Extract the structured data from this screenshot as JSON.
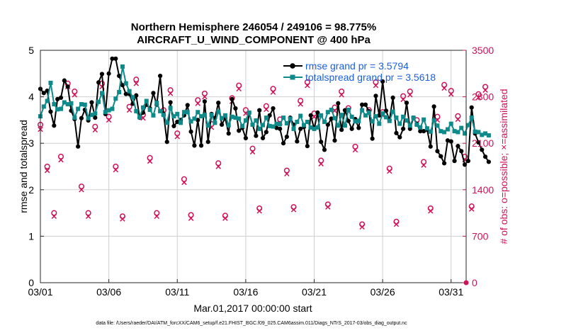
{
  "colors": {
    "rmse": "#000000",
    "spread": "#0f8a8a",
    "obs": "#d01259",
    "legend_text": "#1b5fe0"
  },
  "chart_data": {
    "type": "line",
    "title": "Northern Hemisphere 246054 / 249106 = 98.775%",
    "subtitle": "AIRCRAFT_U_WIND_COMPONENT @ 400 hPa",
    "xlabel": "Mar.01,2017 00:00:00 start",
    "ylabel_left": "rmse and totalspread",
    "ylabel_right": "# of obs: o=possible; ×=assimilated",
    "footer": "data file: /Users/raeder/DAI/ATM_forcXX/CAM6_setup/f.e21.FHIST_BGC.f09_025.CAM6assim.011/Diags_NTrS_2017-03/obs_diag_output.nc",
    "xlim": [
      0,
      31.1
    ],
    "ylim_left": [
      0,
      5
    ],
    "ylim_right": [
      0,
      3500
    ],
    "xticks": [
      0,
      5,
      10,
      15,
      20,
      25,
      30
    ],
    "xtick_labels": [
      "03/01",
      "03/06",
      "03/11",
      "03/16",
      "03/21",
      "03/26",
      "03/31"
    ],
    "yticks_left": [
      "0",
      "1",
      "2",
      "3",
      "4",
      "5"
    ],
    "yticks_right": [
      "0",
      "700",
      "1400",
      "2100",
      "2800",
      "3500"
    ],
    "series": [
      {
        "name": "rmse grand pr = 3.5794",
        "axis": "left",
        "x_start": 0,
        "x_step": 0.25,
        "values": [
          4.17,
          4.08,
          4.13,
          3.68,
          3.38,
          3.95,
          3.98,
          4.35,
          4.22,
          3.7,
          3.52,
          2.93,
          3.54,
          3.72,
          3.49,
          3.88,
          3.55,
          4.31,
          4.49,
          3.63,
          4.5,
          4.82,
          4.82,
          4.45,
          4.25,
          4.06,
          4.06,
          3.85,
          4.03,
          3.55,
          3.66,
          3.83,
          3.75,
          4.08,
          3.83,
          4.45,
          3.63,
          3.03,
          3.88,
          3.37,
          3.46,
          3.5,
          3.6,
          3.82,
          3.25,
          2.95,
          3.5,
          2.95,
          3.9,
          3.03,
          3.63,
          3.54,
          3.87,
          3.4,
          3.54,
          3.21,
          3.95,
          3.75,
          3.27,
          3.33,
          3.11,
          3.65,
          3.4,
          3.16,
          3.71,
          3.11,
          3.24,
          3.6,
          3.75,
          3.33,
          3.31,
          3.0,
          3.14,
          3.55,
          3.4,
          3.04,
          3.31,
          3.35,
          2.94,
          3.6,
          3.31,
          3.66,
          3.03,
          2.86,
          3.4,
          3.53,
          3.06,
          3.86,
          3.29,
          3.71,
          3.48,
          3.31,
          3.52,
          3.33,
          3.83,
          3.83,
          3.69,
          3.1,
          4.02,
          3.6,
          4.33,
          3.7,
          3.5,
          3.98,
          3.22,
          3.13,
          3.31,
          3.87,
          3.31,
          3.55,
          3.42,
          3.26,
          3.26,
          3.29,
          2.93,
          3.79,
          2.83,
          2.72,
          2.57,
          3.06,
          3.04,
          2.62,
          2.94,
          2.83,
          2.54,
          2.62,
          3.77,
          3.21,
          3.02,
          2.86,
          2.71,
          2.6
        ]
      },
      {
        "name": "totalspread grand pr = 3.5618",
        "axis": "left",
        "x_start": 0,
        "x_step": 0.25,
        "values": [
          3.58,
          3.79,
          3.91,
          4.3,
          3.84,
          3.73,
          3.74,
          3.88,
          3.84,
          3.86,
          3.55,
          3.74,
          3.84,
          3.83,
          3.54,
          3.61,
          3.64,
          3.89,
          4.08,
          3.67,
          3.71,
          3.74,
          3.96,
          4.1,
          4.65,
          4.29,
          4.12,
          3.99,
          3.69,
          3.56,
          3.77,
          3.91,
          3.72,
          3.6,
          3.87,
          3.69,
          3.61,
          3.44,
          3.76,
          3.58,
          3.63,
          3.44,
          3.67,
          3.67,
          3.47,
          3.53,
          3.67,
          3.58,
          3.61,
          3.38,
          3.61,
          3.44,
          3.68,
          3.54,
          3.6,
          3.39,
          3.57,
          3.55,
          3.53,
          3.37,
          3.49,
          3.66,
          3.4,
          3.49,
          3.31,
          3.39,
          3.55,
          3.37,
          3.36,
          3.42,
          3.41,
          3.55,
          3.43,
          3.53,
          3.31,
          3.46,
          3.59,
          3.39,
          3.46,
          3.34,
          3.31,
          3.34,
          3.6,
          3.46,
          3.67,
          3.72,
          3.54,
          3.38,
          3.61,
          3.38,
          3.72,
          3.57,
          3.47,
          3.48,
          3.71,
          3.6,
          3.66,
          3.47,
          3.58,
          3.42,
          3.64,
          3.56,
          3.48,
          3.68,
          3.55,
          3.42,
          3.57,
          3.49,
          3.38,
          3.55,
          3.4,
          3.34,
          3.51,
          3.32,
          3.25,
          3.49,
          3.38,
          3.26,
          3.24,
          3.3,
          3.42,
          3.26,
          3.24,
          3.33,
          3.21,
          3.39,
          3.55,
          3.25,
          3.24,
          3.18,
          3.21,
          3.17
        ]
      },
      {
        "name": "possible obs",
        "axis": "right",
        "marker": "o",
        "x_start": 0,
        "x_step": 0.5,
        "values": [
          2380,
          1750,
          1050,
          1900,
          3000,
          2880,
          1450,
          1050,
          2350,
          3000,
          2500,
          1750,
          1000,
          2650,
          3060,
          2530,
          1880,
          1050,
          2600,
          2900,
          2250,
          1560,
          1020,
          2750,
          2850,
          2390,
          1800,
          1010,
          2780,
          2970,
          2600,
          2020,
          1120,
          2660,
          2920,
          2460,
          1690,
          1140,
          2740,
          3020,
          2550,
          1840,
          1180,
          2640,
          2880,
          2630,
          2050,
          880,
          2600,
          3020,
          2570,
          1720,
          920,
          2810,
          2880,
          2450,
          1820,
          1120,
          2500,
          2980,
          2890,
          2510,
          1900,
          1150,
          2840,
          2950
        ]
      },
      {
        "name": "assimilated obs",
        "axis": "right",
        "marker": "x",
        "x_start": 0,
        "x_step": 0.5,
        "values": [
          2310,
          1690,
          1000,
          1850,
          2950,
          2830,
          1400,
          1000,
          2300,
          2950,
          2450,
          1700,
          960,
          2600,
          3000,
          2480,
          1830,
          1000,
          2550,
          2850,
          2200,
          1510,
          970,
          2700,
          2800,
          2340,
          1750,
          970,
          2730,
          2920,
          2550,
          1970,
          1080,
          2610,
          2870,
          2410,
          1640,
          1100,
          2690,
          2970,
          2500,
          1790,
          1140,
          2590,
          2830,
          2580,
          2000,
          840,
          2550,
          2970,
          2520,
          1680,
          880,
          2760,
          2830,
          2400,
          1770,
          1080,
          2450,
          2930,
          2840,
          2460,
          1850,
          1110,
          2790,
          2900
        ]
      }
    ]
  }
}
